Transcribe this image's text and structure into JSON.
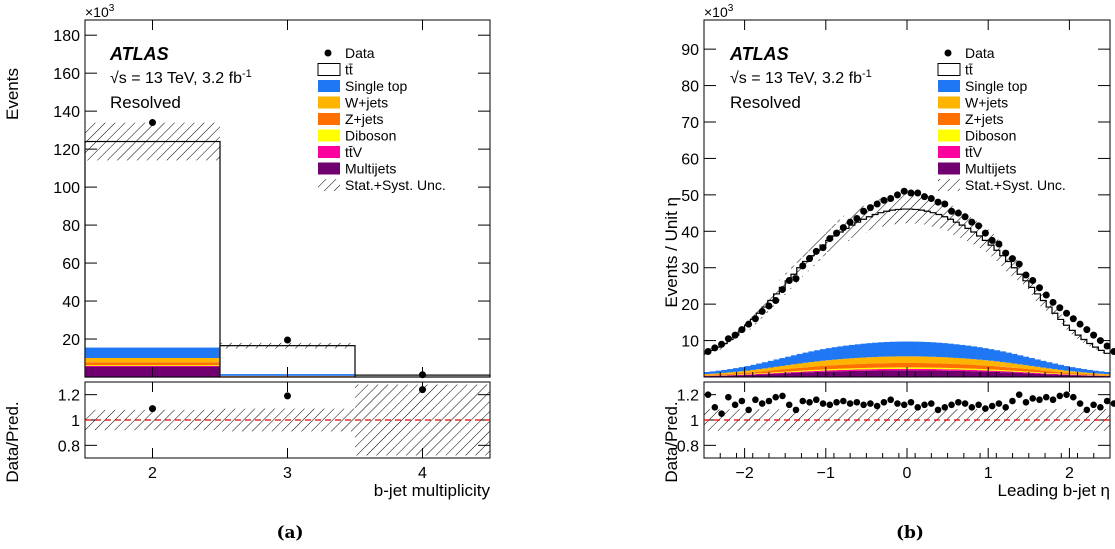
{
  "experiment_label": "ATLAS",
  "energy_label": "√s = 13 TeV, 3.2 fb",
  "energy_sup": "-1",
  "region_label": "Resolved",
  "legend": [
    {
      "label": "Data",
      "kind": "marker",
      "color": "#000000"
    },
    {
      "label": "tt̄",
      "kind": "open",
      "color": "#000000"
    },
    {
      "label": "Single top",
      "kind": "fill",
      "color": "#1f77f4"
    },
    {
      "label": "W+jets",
      "kind": "fill",
      "color": "#ffb400"
    },
    {
      "label": "Z+jets",
      "kind": "fill",
      "color": "#ff7000"
    },
    {
      "label": "Diboson",
      "kind": "fill",
      "color": "#ffff00"
    },
    {
      "label": "tt̄V",
      "kind": "fill",
      "color": "#ff00a0"
    },
    {
      "label": "Multijets",
      "kind": "fill",
      "color": "#700070"
    },
    {
      "label": "Stat.+Syst. Unc.",
      "kind": "hatch",
      "color": "#000000"
    }
  ],
  "chart_data": [
    {
      "type": "bar",
      "panel": "(a)",
      "title": "",
      "xlabel": "b-jet multiplicity",
      "ylabel": "Events",
      "ratio_ylabel": "Data/Pred.",
      "y_multiplier": "×10",
      "y_multiplier_exp": "3",
      "xlim": [
        1.5,
        4.5
      ],
      "ylim": [
        0,
        188
      ],
      "ratio_ylim": [
        0.7,
        1.3
      ],
      "x_ticks": [
        2,
        3,
        4
      ],
      "y_ticks": [
        20,
        40,
        60,
        80,
        100,
        120,
        140,
        160,
        180
      ],
      "ratio_y_ticks": [
        0.8,
        1,
        1.2
      ],
      "bins": [
        [
          1.5,
          2.5
        ],
        [
          2.5,
          3.5
        ],
        [
          3.5,
          4.5
        ]
      ],
      "stack_order": [
        "Multijets",
        "tt̄V",
        "Diboson",
        "Z+jets",
        "W+jets",
        "Single top"
      ],
      "stack": {
        "Multijets": [
          5.5,
          0.3,
          0.02
        ],
        "tt̄V": [
          0.3,
          0.05,
          0.01
        ],
        "Diboson": [
          0.4,
          0.02,
          0.0
        ],
        "Z+jets": [
          1.5,
          0.1,
          0.01
        ],
        "W+jets": [
          2.3,
          0.15,
          0.01
        ],
        "Single top": [
          5.5,
          0.9,
          0.05
        ]
      },
      "total_pred": [
        124,
        16.5,
        1.0
      ],
      "unc_rel": [
        0.08,
        0.09,
        0.28
      ],
      "data_x": [
        2,
        3,
        4
      ],
      "data": [
        134,
        19.5,
        1.2
      ],
      "ratio": [
        1.09,
        1.19,
        1.24
      ]
    },
    {
      "type": "bar",
      "panel": "(b)",
      "title": "",
      "xlabel": "Leading b-jet η",
      "ylabel": "Events / Unit η",
      "ratio_ylabel": "Data/Pred.",
      "y_multiplier": "×10",
      "y_multiplier_exp": "3",
      "xlim": [
        -2.5,
        2.5
      ],
      "ylim": [
        0,
        98
      ],
      "ratio_ylim": [
        0.7,
        1.3
      ],
      "x_ticks": [
        -2,
        -1,
        0,
        1,
        2
      ],
      "y_ticks": [
        10,
        20,
        30,
        40,
        50,
        60,
        70,
        80,
        90
      ],
      "ratio_y_ticks": [
        0.8,
        1,
        1.2
      ],
      "bin_width": 0.1,
      "pred": [
        6.5,
        7.3,
        8.2,
        9.2,
        10.3,
        11.5,
        12.8,
        14.2,
        15.8,
        17.5,
        19.2,
        21.0,
        22.8,
        24.6,
        26.4,
        28.2,
        30.0,
        31.7,
        33.3,
        34.8,
        36.2,
        37.5,
        38.7,
        39.8,
        40.8,
        41.7,
        42.5,
        43.3,
        44.0,
        44.6,
        45.1,
        45.5,
        45.8,
        46.0,
        46.1,
        46.1,
        46.0,
        45.8,
        45.5,
        45.1,
        44.6,
        44.0,
        43.3,
        42.5,
        41.7,
        40.8,
        39.8,
        38.7,
        37.5,
        36.2,
        34.8,
        33.3,
        31.7,
        30.0,
        28.2,
        26.4,
        24.6,
        22.8,
        21.0,
        19.2,
        17.5,
        15.8,
        14.2,
        12.8,
        11.5,
        10.3,
        9.2,
        8.2,
        7.3,
        6.5
      ],
      "x_first": -2.45,
      "data": [
        7.0,
        8.0,
        9.0,
        10.5,
        11.5,
        13.0,
        14.5,
        16.0,
        18.0,
        19.5,
        21.0,
        24.0,
        26.5,
        27.0,
        30.5,
        32.5,
        34.5,
        35.5,
        38.0,
        39.5,
        41.0,
        42.5,
        43.5,
        45.5,
        46.5,
        47.5,
        48.5,
        49.0,
        50.0,
        51.0,
        50.5,
        50.5,
        49.5,
        49.0,
        48.0,
        47.5,
        45.5,
        45.0,
        44.0,
        42.5,
        41.5,
        39.5,
        37.5,
        36.5,
        34.0,
        32.5,
        31.0,
        28.0,
        26.5,
        24.5,
        22.5,
        20.5,
        19.0,
        17.5,
        16.0,
        14.5,
        13.0,
        11.5,
        10.0,
        8.5,
        7.0
      ],
      "data_x_first": -2.45,
      "data_x_step": 0.0833,
      "bkg_frac": {
        "Multijets": 0.018,
        "tt̄V": 0.004,
        "Diboson": 0.004,
        "Z+jets": 0.012,
        "W+jets": 0.018,
        "Single top": 0.04
      },
      "unc_rel": 0.085,
      "ratio": [
        1.2,
        1.1,
        1.05,
        1.18,
        1.12,
        1.15,
        1.08,
        1.16,
        1.13,
        1.15,
        1.18,
        1.19,
        1.12,
        1.08,
        1.15,
        1.14,
        1.16,
        1.13,
        1.12,
        1.14,
        1.15,
        1.13,
        1.14,
        1.12,
        1.13,
        1.11,
        1.14,
        1.16,
        1.13,
        1.12,
        1.14,
        1.1,
        1.12,
        1.13,
        1.08,
        1.1,
        1.12,
        1.14,
        1.13,
        1.1,
        1.12,
        1.09,
        1.11,
        1.13,
        1.1,
        1.15,
        1.2,
        1.14,
        1.17,
        1.16,
        1.18,
        1.16,
        1.19,
        1.2,
        1.18,
        1.13,
        1.08,
        1.12,
        1.1,
        1.15,
        1.13
      ]
    }
  ],
  "panel_labels": [
    "(a)",
    "(b)"
  ]
}
